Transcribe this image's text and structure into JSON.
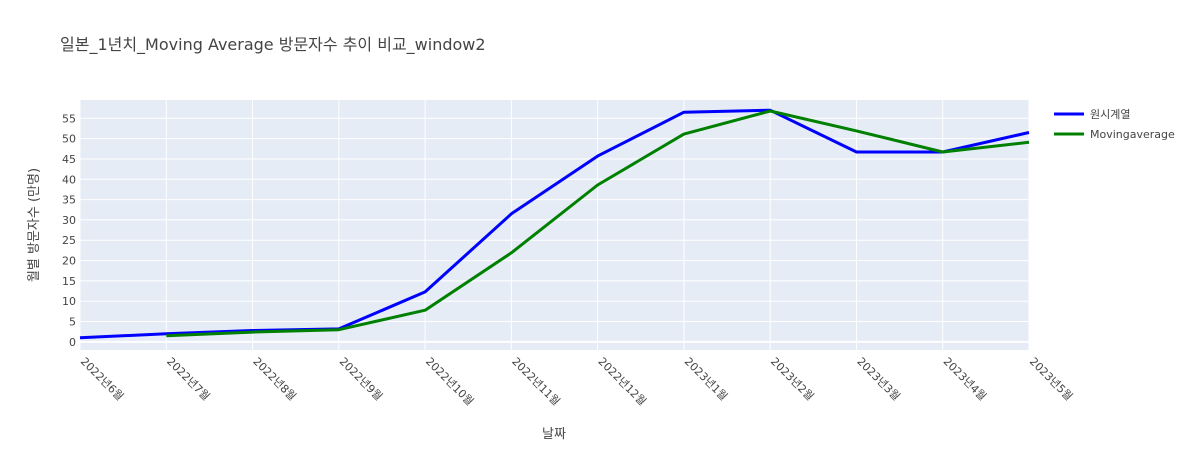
{
  "chart_data": {
    "type": "line",
    "title": "일본_1년치_Moving Average 방문자수 추이 비교_window2",
    "xlabel": "날짜",
    "ylabel": "월별 방문자수 (만명)",
    "categories": [
      "2022년6월",
      "2022년7월",
      "2022년8월",
      "2022년9월",
      "2022년10월",
      "2022년11월",
      "2022년12월",
      "2023년1월",
      "2023년2월",
      "2023년3월",
      "2023년4월",
      "2023년5월"
    ],
    "yticks": [
      0,
      5,
      10,
      15,
      20,
      25,
      30,
      35,
      40,
      45,
      50,
      55
    ],
    "ylim": [
      -2,
      59.5
    ],
    "grid": true,
    "legend_position": "top-right",
    "plot_background": "#e5ecf6",
    "series": [
      {
        "name": "원시계열",
        "color": "#0000ff",
        "values": [
          1.0,
          2.0,
          2.8,
          3.2,
          12.3,
          31.5,
          45.7,
          56.5,
          57.0,
          46.7,
          46.7,
          51.5
        ]
      },
      {
        "name": "Movingaverage",
        "color": "#008000",
        "values": [
          null,
          1.5,
          2.4,
          3.0,
          7.8,
          21.9,
          38.6,
          51.1,
          56.8,
          51.9,
          46.7,
          49.1
        ]
      }
    ]
  }
}
